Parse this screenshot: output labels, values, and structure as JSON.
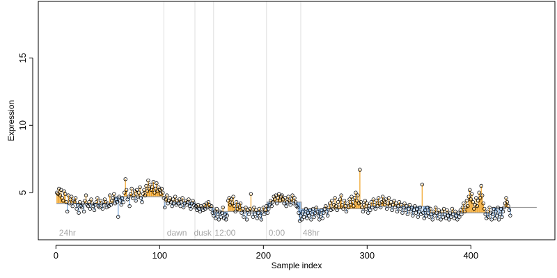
{
  "chart_data": {
    "type": "scatter",
    "xlabel": "Sample index",
    "ylabel": "Expression",
    "xlim": [
      -17,
      481
    ],
    "ylim": [
      1.5,
      19.2
    ],
    "x_ticks": [
      0,
      100,
      200,
      300,
      400
    ],
    "y_ticks": [
      5,
      10,
      15
    ],
    "grid": false,
    "phase_boundaries": [
      104,
      134,
      152,
      203,
      236
    ],
    "annotations": [
      {
        "text": "24hr",
        "x": 3
      },
      {
        "text": "dawn",
        "x": 107
      },
      {
        "text": "dusk",
        "x": 133
      },
      {
        "text": "12:00",
        "x": 153
      },
      {
        "text": "0:00",
        "x": 205
      },
      {
        "text": "48hr",
        "x": 238
      }
    ],
    "segment_levels": [
      {
        "x_start": 1,
        "x_end": 55,
        "y": 4.2
      },
      {
        "x_start": 56,
        "x_end": 104,
        "y": 4.7
      },
      {
        "x_start": 105,
        "x_end": 134,
        "y": 4.3
      },
      {
        "x_start": 135,
        "x_end": 152,
        "y": 3.9
      },
      {
        "x_start": 153,
        "x_end": 203,
        "y": 3.6
      },
      {
        "x_start": 204,
        "x_end": 236,
        "y": 4.3
      },
      {
        "x_start": 237,
        "x_end": 300,
        "y": 3.8
      },
      {
        "x_start": 301,
        "x_end": 360,
        "y": 4.0
      },
      {
        "x_start": 361,
        "x_end": 420,
        "y": 3.5
      },
      {
        "x_start": 421,
        "x_end": 463,
        "y": 3.9
      }
    ],
    "points": {
      "x_start": 1,
      "values": [
        5.0,
        4.9,
        5.3,
        4.8,
        5.2,
        4.6,
        4.4,
        5.1,
        4.9,
        4.3,
        3.6,
        4.8,
        4.2,
        4.5,
        4.7,
        4.0,
        4.4,
        4.3,
        4.6,
        3.8,
        4.1,
        3.5,
        4.3,
        4.0,
        3.9,
        4.2,
        3.6,
        4.4,
        4.8,
        4.1,
        4.0,
        4.3,
        3.8,
        4.5,
        4.2,
        4.0,
        3.7,
        4.1,
        4.3,
        4.6,
        4.0,
        3.9,
        4.4,
        4.2,
        3.8,
        4.1,
        4.5,
        4.3,
        3.9,
        4.2,
        4.0,
        4.8,
        4.1,
        4.4,
        4.6,
        4.9,
        4.2,
        4.5,
        4.3,
        3.2,
        4.7,
        4.4,
        4.1,
        4.6,
        4.3,
        5.0,
        6.0,
        5.2,
        4.5,
        4.7,
        4.0,
        4.9,
        5.3,
        4.6,
        4.8,
        5.1,
        4.4,
        5.2,
        4.7,
        5.0,
        5.4,
        4.6,
        4.3,
        4.9,
        5.2,
        4.8,
        5.5,
        5.1,
        5.9,
        5.3,
        5.6,
        5.2,
        5.4,
        5.8,
        5.0,
        5.3,
        5.7,
        5.1,
        5.4,
        5.2,
        4.9,
        5.3,
        5.0,
        4.6,
        3.9,
        4.5,
        4.8,
        4.2,
        4.4,
        4.6,
        4.3,
        4.0,
        4.5,
        4.2,
        4.7,
        4.1,
        4.4,
        4.2,
        4.5,
        4.0,
        4.3,
        4.6,
        3.9,
        4.2,
        4.4,
        4.1,
        4.3,
        4.5,
        4.0,
        3.8,
        4.2,
        4.4,
        4.1,
        3.9,
        4.0,
        3.7,
        4.1,
        3.8,
        3.6,
        4.0,
        3.9,
        3.7,
        4.1,
        3.8,
        4.2,
        3.9,
        4.3,
        4.1,
        3.8,
        4.0,
        3.5,
        3.3,
        3.6,
        3.1,
        3.8,
        3.4,
        3.0,
        3.6,
        3.2,
        3.5,
        3.9,
        3.1,
        3.4,
        3.0,
        3.3,
        4.4,
        4.6,
        4.1,
        4.5,
        4.2,
        4.7,
        4.0,
        3.6,
        4.3,
        3.8,
        4.1,
        3.9,
        4.2,
        3.5,
        3.8,
        3.2,
        3.6,
        3.9,
        3.0,
        3.7,
        3.4,
        3.8,
        4.9,
        3.6,
        3.2,
        3.9,
        3.4,
        3.7,
        3.1,
        3.5,
        3.8,
        3.3,
        3.0,
        3.6,
        3.9,
        3.4,
        3.7,
        4.0,
        3.5,
        3.8,
        4.1,
        4.4,
        4.0,
        4.3,
        4.7,
        4.5,
        4.8,
        4.2,
        4.6,
        4.9,
        4.4,
        4.7,
        4.8,
        4.5,
        4.2,
        4.6,
        4.0,
        4.3,
        4.7,
        4.4,
        4.1,
        4.5,
        4.8,
        4.2,
        4.6,
        4.3,
        4.0,
        3.9,
        3.5,
        2.9,
        3.3,
        3.0,
        3.6,
        3.2,
        3.4,
        3.8,
        3.1,
        3.5,
        3.3,
        3.7,
        3.0,
        3.4,
        3.8,
        3.2,
        3.5,
        3.9,
        3.6,
        3.3,
        3.0,
        3.4,
        3.7,
        3.1,
        3.5,
        3.8,
        4.0,
        3.6,
        3.3,
        3.9,
        4.2,
        3.7,
        4.4,
        3.8,
        4.1,
        4.6,
        4.0,
        3.7,
        4.3,
        3.9,
        4.5,
        4.8,
        4.1,
        3.8,
        4.4,
        4.0,
        3.6,
        4.2,
        3.9,
        4.5,
        4.1,
        4.7,
        4.3,
        4.0,
        4.6,
        5.0,
        4.4,
        4.8,
        4.2,
        6.7,
        4.3,
        3.9,
        3.6,
        4.1,
        4.4,
        3.8,
        4.2,
        3.5,
        4.0,
        3.7,
        4.3,
        3.9,
        4.5,
        4.1,
        3.8,
        4.4,
        4.0,
        4.6,
        4.2,
        3.9,
        4.3,
        4.7,
        4.4,
        4.1,
        4.5,
        3.8,
        4.2,
        4.6,
        4.0,
        4.3,
        3.7,
        4.1,
        4.4,
        3.9,
        4.2,
        3.6,
        4.0,
        4.3,
        3.8,
        4.1,
        3.5,
        3.9,
        4.2,
        3.7,
        4.0,
        3.4,
        3.8,
        4.1,
        3.6,
        3.9,
        3.3,
        3.7,
        4.0,
        3.5,
        3.8,
        3.2,
        3.6,
        3.9,
        3.4,
        5.6,
        3.5,
        3.1,
        3.7,
        3.3,
        3.9,
        3.5,
        3.2,
        3.8,
        3.4,
        3.0,
        3.6,
        3.3,
        3.9,
        3.5,
        3.1,
        3.7,
        3.4,
        3.0,
        3.6,
        3.2,
        3.8,
        3.4,
        3.1,
        3.7,
        3.3,
        3.0,
        3.5,
        3.2,
        3.8,
        3.4,
        3.1,
        3.6,
        3.3,
        3.0,
        3.5,
        3.2,
        3.7,
        3.4,
        3.9,
        4.2,
        3.6,
        3.9,
        4.4,
        4.0,
        4.7,
        5.2,
        4.5,
        4.9,
        4.3,
        3.8,
        4.1,
        4.6,
        4.0,
        4.4,
        5.0,
        4.6,
        5.5,
        4.8,
        4.2,
        3.8,
        3.4,
        3.1,
        3.6,
        3.2,
        3.9,
        3.5,
        3.0,
        3.4,
        3.8,
        3.1,
        3.6,
        3.3,
        3.9,
        3.0,
        3.4,
        3.8,
        3.2,
        3.6,
        3.9,
        4.2,
        4.6,
        4.3,
        4.0,
        3.7,
        3.3
      ]
    }
  }
}
